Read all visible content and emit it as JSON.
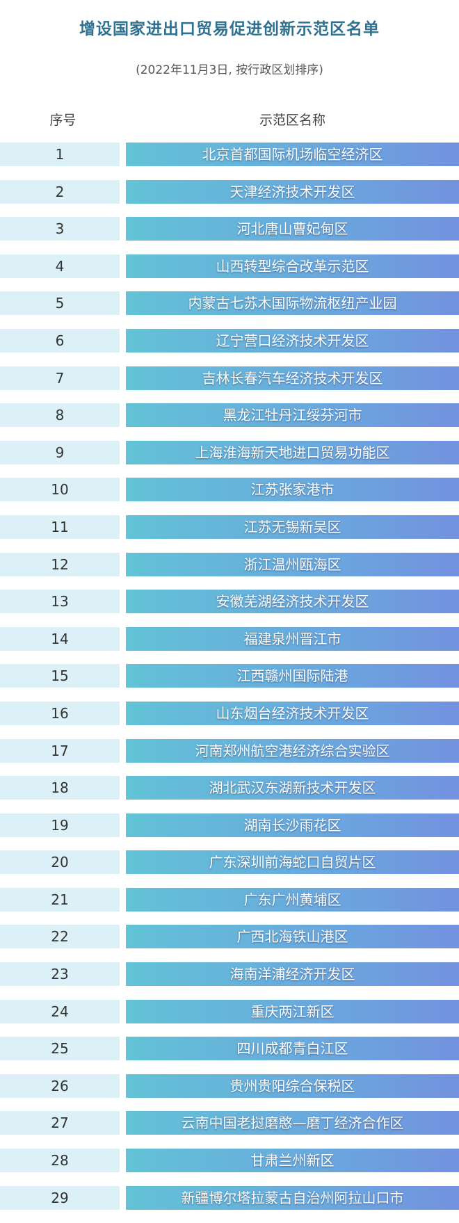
{
  "title": "增设国家进出口贸易促进创新示范区名单",
  "subtitle": "(2022年11月3日, 按行政区划排序)",
  "headers": {
    "no": "序号",
    "name": "示范区名称"
  },
  "rows": [
    {
      "no": "1",
      "name": "北京首都国际机场临空经济区"
    },
    {
      "no": "2",
      "name": "天津经济技术开发区"
    },
    {
      "no": "3",
      "name": "河北唐山曹妃甸区"
    },
    {
      "no": "4",
      "name": "山西转型综合改革示范区"
    },
    {
      "no": "5",
      "name": "内蒙古七苏木国际物流枢纽产业园"
    },
    {
      "no": "6",
      "name": "辽宁营口经济技术开发区"
    },
    {
      "no": "7",
      "name": "吉林长春汽车经济技术开发区"
    },
    {
      "no": "8",
      "name": "黑龙江牡丹江绥芬河市"
    },
    {
      "no": "9",
      "name": "上海淮海新天地进口贸易功能区"
    },
    {
      "no": "10",
      "name": "江苏张家港市"
    },
    {
      "no": "11",
      "name": "江苏无锡新吴区"
    },
    {
      "no": "12",
      "name": "浙江温州瓯海区"
    },
    {
      "no": "13",
      "name": "安徽芜湖经济技术开发区"
    },
    {
      "no": "14",
      "name": "福建泉州晋江市"
    },
    {
      "no": "15",
      "name": "江西赣州国际陆港"
    },
    {
      "no": "16",
      "name": "山东烟台经济技术开发区"
    },
    {
      "no": "17",
      "name": "河南郑州航空港经济综合实验区"
    },
    {
      "no": "18",
      "name": "湖北武汉东湖新技术开发区"
    },
    {
      "no": "19",
      "name": "湖南长沙雨花区"
    },
    {
      "no": "20",
      "name": "广东深圳前海蛇口自贸片区"
    },
    {
      "no": "21",
      "name": "广东广州黄埔区"
    },
    {
      "no": "22",
      "name": "广西北海铁山港区"
    },
    {
      "no": "23",
      "name": "海南洋浦经济开发区"
    },
    {
      "no": "24",
      "name": "重庆两江新区"
    },
    {
      "no": "25",
      "name": "四川成都青白江区"
    },
    {
      "no": "26",
      "name": "贵州贵阳综合保税区"
    },
    {
      "no": "27",
      "name": "云南中国老挝磨憨—磨丁经济合作区"
    },
    {
      "no": "28",
      "name": "甘肃兰州新区"
    },
    {
      "no": "29",
      "name": "新疆博尔塔拉蒙古自治州阿拉山口市"
    }
  ]
}
